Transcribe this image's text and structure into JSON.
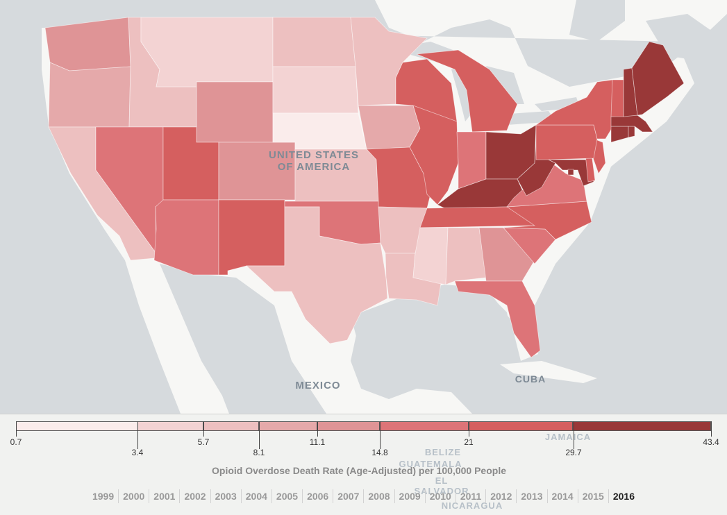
{
  "map": {
    "labels": {
      "usa_line1": "UNITED STATES",
      "usa_line2": "OF AMERICA",
      "mexico": "MEXICO",
      "cuba": "CUBA"
    },
    "bg_labels": {
      "jamaica": "JAMAICA",
      "belize": "BELIZE",
      "guatemala": "GUATEMALA",
      "el_salvador_1": "EL",
      "el_salvador_2": "SALVADOR",
      "nicaragua": "NICARAGUA"
    },
    "states": {
      "WA": 11.1,
      "OR": 8.1,
      "CA": 5.7,
      "ID": 5.7,
      "MT": 3.4,
      "WY": 11.1,
      "NV": 14.8,
      "UT": 21,
      "AZ": 14.8,
      "CO": 11.1,
      "NM": 21,
      "ND": 5.7,
      "SD": 3.4,
      "NE": 0.7,
      "KS": 5.7,
      "OK": 14.8,
      "TX": 5.7,
      "MN": 5.7,
      "IA": 8.1,
      "MO": 21,
      "AR": 5.7,
      "LA": 5.7,
      "WI": 21,
      "IL": 21,
      "MI": 21,
      "IN": 14.8,
      "OH": 43.4,
      "KY": 29.7,
      "TN": 21,
      "MS": 3.4,
      "AL": 5.7,
      "GA": 11.1,
      "FL": 14.8,
      "SC": 14.8,
      "NC": 21,
      "VA": 14.8,
      "WV": 43.4,
      "MD": 29.7,
      "DE": 21,
      "NJ": 21,
      "PA": 21,
      "NY": 21,
      "CT": 29.7,
      "RI": 29.7,
      "MA": 43.4,
      "VT": 21,
      "NH": 43.4,
      "ME": 29.7,
      "DC": 29.7
    }
  },
  "legend": {
    "title": "Opioid Overdose Death Rate (Age-Adjusted) per 100,000 People",
    "ticks": [
      "0.7",
      "3.4",
      "5.7",
      "8.1",
      "11.1",
      "14.8",
      "21",
      "29.7",
      "43.4"
    ],
    "colors": [
      "#faeceb",
      "#f3d3d3",
      "#edc0c0",
      "#e5a9aa",
      "#df9496",
      "#dd7478",
      "#d55f5f",
      "#993838"
    ]
  },
  "years": {
    "items": [
      "1999",
      "2000",
      "2001",
      "2002",
      "2003",
      "2004",
      "2005",
      "2006",
      "2007",
      "2008",
      "2009",
      "2010",
      "2011",
      "2012",
      "2013",
      "2014",
      "2015",
      "2016"
    ],
    "selected": "2016"
  }
}
